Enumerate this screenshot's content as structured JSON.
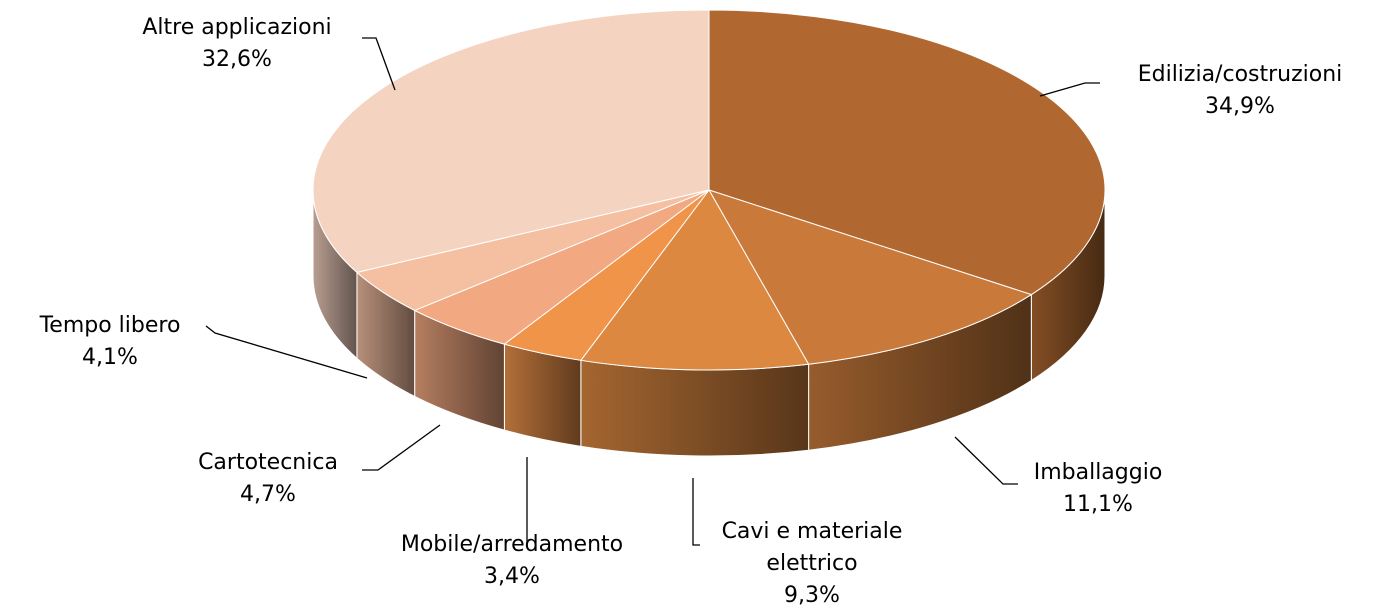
{
  "chart_data": {
    "type": "pie3d",
    "categories": [
      "Edilizia/costruzioni",
      "Imballaggio",
      "Cavi e materiale elettrico",
      "Mobile/arredamento",
      "Cartotecnica",
      "Tempo libero",
      "Altre applicazioni"
    ],
    "values": [
      34.9,
      11.1,
      9.3,
      3.4,
      4.7,
      4.1,
      32.6
    ],
    "value_labels": [
      "34,9%",
      "11,1%",
      "9,3%",
      "3,4%",
      "4,7%",
      "4,1%",
      "32,6%"
    ],
    "colors": [
      "#b06830",
      "#c97a3a",
      "#dc8840",
      "#f0944a",
      "#f2a880",
      "#f5c0a2",
      "#f5d3c1"
    ]
  }
}
